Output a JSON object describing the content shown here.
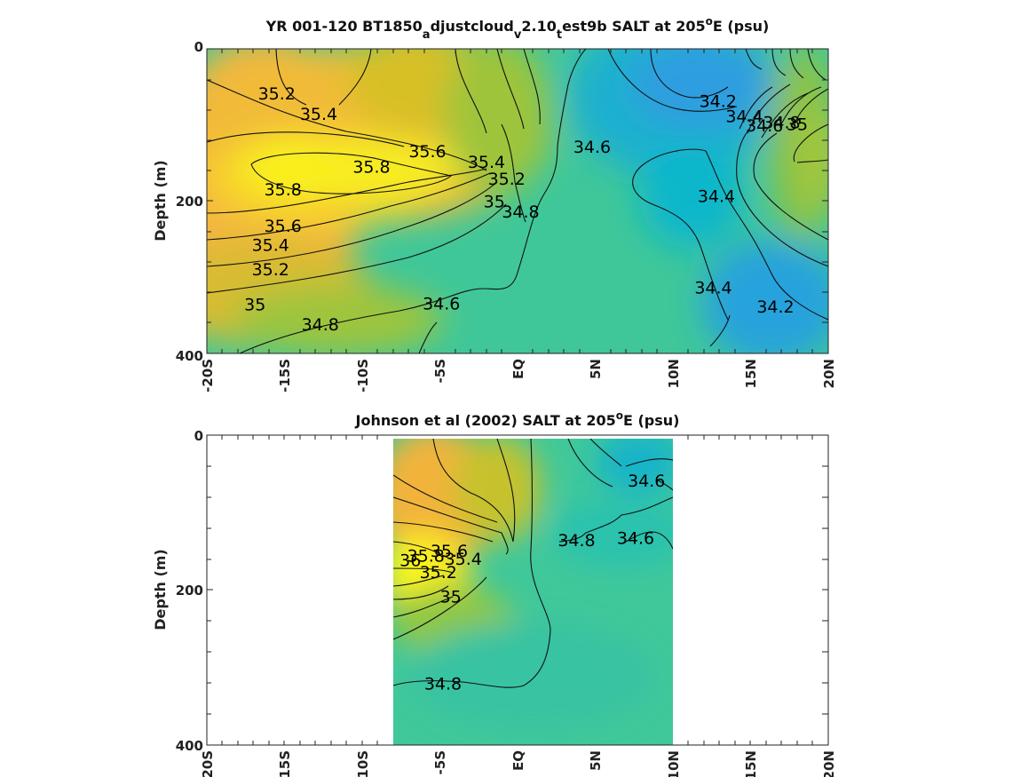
{
  "chart_data": [
    {
      "type": "heatmap",
      "subtype": "filled-contour",
      "title": {
        "main": "YR 001-120 BT1850",
        "sub1": "a",
        "t1": "djustcloud",
        "sub2": "v",
        "t2": "2.10",
        "sub3": "t",
        "t3": "est9b SALT at 205",
        "sup": "o",
        "t4": "E (psu)"
      },
      "xlabel": "",
      "ylabel": "Depth (m)",
      "xlim": [
        -20,
        20
      ],
      "ylim": [
        0,
        400
      ],
      "y_reversed": true,
      "grid": false,
      "colormap": "parula",
      "x_ticks": [
        {
          "value": -20,
          "label": "-20S"
        },
        {
          "value": -15,
          "label": "-15S"
        },
        {
          "value": -10,
          "label": "-10S"
        },
        {
          "value": -5,
          "label": "-5S"
        },
        {
          "value": 0,
          "label": "EQ"
        },
        {
          "value": 5,
          "label": "5N"
        },
        {
          "value": 10,
          "label": "10N"
        },
        {
          "value": 15,
          "label": "15N"
        },
        {
          "value": 20,
          "label": "20N"
        }
      ],
      "y_ticks": [
        {
          "value": 0,
          "label": "0"
        },
        {
          "value": 200,
          "label": "200"
        },
        {
          "value": 400,
          "label": "400"
        }
      ],
      "data_extent_x": [
        -20,
        20
      ],
      "contour_labels": [
        {
          "text": "35.2",
          "x": -15.5,
          "y": 60
        },
        {
          "text": "35.4",
          "x": -12.8,
          "y": 87
        },
        {
          "text": "35.6",
          "x": -5.8,
          "y": 136
        },
        {
          "text": "35.8",
          "x": -9.4,
          "y": 156
        },
        {
          "text": "35.8",
          "x": -15.1,
          "y": 186
        },
        {
          "text": "35.4",
          "x": -2.0,
          "y": 150
        },
        {
          "text": "35.2",
          "x": -0.7,
          "y": 172
        },
        {
          "text": "35",
          "x": -1.5,
          "y": 202
        },
        {
          "text": "34.8",
          "x": 0.2,
          "y": 215
        },
        {
          "text": "35.6",
          "x": -15.1,
          "y": 234
        },
        {
          "text": "35.4",
          "x": -15.9,
          "y": 259
        },
        {
          "text": "35.2",
          "x": -15.9,
          "y": 291
        },
        {
          "text": "35",
          "x": -16.9,
          "y": 337
        },
        {
          "text": "34.8",
          "x": -12.7,
          "y": 363
        },
        {
          "text": "34.6",
          "x": -4.9,
          "y": 336
        },
        {
          "text": "34.6",
          "x": 4.8,
          "y": 130
        },
        {
          "text": "34.2",
          "x": 12.9,
          "y": 70
        },
        {
          "text": "34.4",
          "x": 14.6,
          "y": 90
        },
        {
          "text": "34.6",
          "x": 15.9,
          "y": 102
        },
        {
          "text": "34.8",
          "x": 17.0,
          "y": 98
        },
        {
          "text": "35",
          "x": 18.0,
          "y": 100
        },
        {
          "text": "34.4",
          "x": 12.8,
          "y": 195
        },
        {
          "text": "34.4",
          "x": 12.6,
          "y": 315
        },
        {
          "text": "34.2",
          "x": 16.6,
          "y": 340
        }
      ]
    },
    {
      "type": "heatmap",
      "subtype": "filled-contour",
      "title": {
        "main": "Johnson et al (2002) SALT at 205",
        "sup": "o",
        "t4": "E (psu)"
      },
      "xlabel": "",
      "ylabel": "Depth (m)",
      "xlim": [
        -20,
        20
      ],
      "ylim": [
        0,
        400
      ],
      "y_reversed": true,
      "grid": false,
      "colormap": "parula",
      "x_ticks": [
        {
          "value": -20,
          "label": "-20S"
        },
        {
          "value": -15,
          "label": "-15S"
        },
        {
          "value": -10,
          "label": "-10S"
        },
        {
          "value": -5,
          "label": "-5S"
        },
        {
          "value": 0,
          "label": "EQ"
        },
        {
          "value": 5,
          "label": "5N"
        },
        {
          "value": 10,
          "label": "10N"
        },
        {
          "value": 15,
          "label": "15N"
        },
        {
          "value": 20,
          "label": "20N"
        }
      ],
      "y_ticks": [
        {
          "value": 0,
          "label": "0"
        },
        {
          "value": 200,
          "label": "200"
        },
        {
          "value": 400,
          "label": "400"
        }
      ],
      "data_extent_x": [
        -8,
        10
      ],
      "contour_labels": [
        {
          "text": "34.6",
          "x": 8.3,
          "y": 60
        },
        {
          "text": "34.8",
          "x": 3.8,
          "y": 137
        },
        {
          "text": "34.6",
          "x": 7.6,
          "y": 134
        },
        {
          "text": "36",
          "x": -6.9,
          "y": 163
        },
        {
          "text": "35.8",
          "x": -5.9,
          "y": 157
        },
        {
          "text": "35.6",
          "x": -4.4,
          "y": 151
        },
        {
          "text": "35.4",
          "x": -3.5,
          "y": 161
        },
        {
          "text": "35.2",
          "x": -5.1,
          "y": 178
        },
        {
          "text": "35",
          "x": -4.3,
          "y": 210
        },
        {
          "text": "34.8",
          "x": -4.8,
          "y": 322
        }
      ]
    }
  ]
}
